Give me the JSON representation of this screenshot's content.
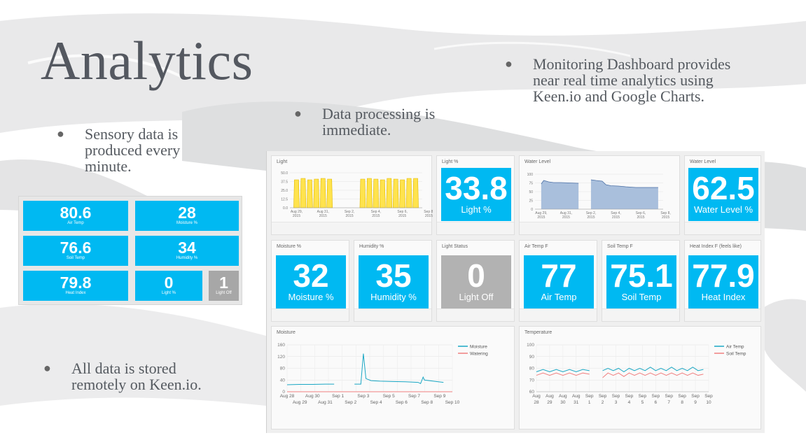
{
  "slide": {
    "title": "Analytics",
    "bullets": {
      "sensory": "Sensory data is\nproduced every\nminute.",
      "processing": "Data processing is\nimmediate.",
      "monitoring": "Monitoring Dashboard provides\nnear real time analytics using\nKeen.io and Google Charts.",
      "storage": "All data is stored\nremotely on Keen.io."
    },
    "bullet_glyph": "●"
  },
  "mini_panel": {
    "tiles": [
      {
        "value": "80.6",
        "label": "Air Temp"
      },
      {
        "value": "28",
        "label": "Moisture %"
      },
      {
        "value": "76.6",
        "label": "Soil Temp"
      },
      {
        "value": "34",
        "label": "Humidity %"
      },
      {
        "value": "79.8",
        "label": "Heat Index"
      },
      {
        "value": "0",
        "label": "Light %"
      },
      {
        "value": "1",
        "label": "Light Off"
      }
    ]
  },
  "dashboard": {
    "cards": {
      "light_chart": "Light",
      "light_pct": "Light %",
      "water_chart": "Water Level",
      "water_tile": "Water Level",
      "moisture_pct": "Moisture %",
      "humidity_pct": "Humidity %",
      "light_status": "Light Status",
      "air_temp": "Air Temp F",
      "soil_temp": "Soil Temp F",
      "heat_index": "Heat Index F (feels like)",
      "moisture_chart": "Moisture",
      "temperature_chart": "Temperature"
    },
    "tiles": {
      "light_pct": {
        "value": "33.8",
        "label": "Light %"
      },
      "water_level": {
        "value": "62.5",
        "label": "Water Level %"
      },
      "moisture": {
        "value": "32",
        "label": "Moisture %"
      },
      "humidity": {
        "value": "35",
        "label": "Humidity %"
      },
      "light_status": {
        "value": "0",
        "label": "Light Off"
      },
      "air_temp": {
        "value": "77",
        "label": "Air Temp"
      },
      "soil_temp": {
        "value": "75.1",
        "label": "Soil Temp"
      },
      "heat_index": {
        "value": "77.9",
        "label": "Heat Index"
      }
    }
  },
  "colors": {
    "tile_blue": "#00b9f2",
    "tile_gray": "#b2b2b2",
    "light_fill": "#ffe34d",
    "light_line": "#e0b800",
    "water_fill": "#a9bfdc",
    "water_line": "#4a6fa5",
    "series_cyan": "#1aa7c4",
    "series_red": "#f08080"
  },
  "chart_data": [
    {
      "type": "area",
      "title": "Light",
      "x": [
        "Aug 29, 2015",
        "Aug 31, 2015",
        "Sep 2, 2015",
        "Sep 4, 2015",
        "Sep 6, 2015",
        "Sep 8, 2015"
      ],
      "yticks": [
        "50.0",
        "37.5",
        "25.0",
        "12.5",
        "0.0"
      ],
      "ylim": [
        0,
        50
      ],
      "x_domain": [
        28.5,
        38.5
      ],
      "x_ticks_pos": [
        29,
        31,
        33,
        35,
        37,
        39
      ],
      "daily_peaks": [
        [
          29,
          40
        ],
        [
          29.5,
          42
        ],
        [
          30,
          40
        ],
        [
          30.5,
          41
        ],
        [
          31,
          42
        ],
        [
          31.5,
          41
        ],
        [
          34,
          41
        ],
        [
          34.5,
          42
        ],
        [
          35,
          41
        ],
        [
          35.5,
          40
        ],
        [
          36,
          42
        ],
        [
          36.5,
          41
        ],
        [
          37,
          40
        ],
        [
          37.5,
          42
        ],
        [
          38,
          42
        ]
      ]
    },
    {
      "type": "area",
      "title": "Water Level",
      "x": [
        "Aug 29, 2015",
        "Aug 31, 2015",
        "Sep 2, 2015",
        "Sep 4, 2015",
        "Sep 6, 2015",
        "Sep 8, 2015"
      ],
      "yticks": [
        "100",
        "75",
        "50",
        "25",
        "0"
      ],
      "ylim": [
        0,
        100
      ],
      "x_domain": [
        28.5,
        38.8
      ],
      "x_ticks_pos": [
        29,
        31,
        33,
        35,
        37,
        39
      ],
      "segments": [
        [
          [
            29.0,
            72
          ],
          [
            29.2,
            82
          ],
          [
            29.6,
            78
          ],
          [
            30.0,
            76
          ],
          [
            30.6,
            76
          ],
          [
            31.3,
            75
          ],
          [
            32.0,
            74
          ]
        ],
        [
          [
            33.0,
            84
          ],
          [
            33.4,
            82
          ],
          [
            33.9,
            80
          ],
          [
            34.2,
            70
          ],
          [
            34.6,
            67
          ],
          [
            35.2,
            66
          ],
          [
            35.8,
            64
          ],
          [
            36.6,
            62
          ],
          [
            37.4,
            62
          ],
          [
            38.4,
            62
          ]
        ]
      ]
    },
    {
      "type": "line",
      "title": "Moisture",
      "x_major": [
        "Aug 28",
        "Aug 30",
        "Sep 1",
        "Sep 3",
        "Sep 5",
        "Sep 7",
        "Sep 9"
      ],
      "x_minor": [
        "Aug 29",
        "Aug 31",
        "Sep 2",
        "Sep 4",
        "Sep 6",
        "Sep 8",
        "Sep 10"
      ],
      "yticks": [
        "160",
        "120",
        "80",
        "40",
        "0"
      ],
      "ylim": [
        0,
        160
      ],
      "x_domain": [
        28,
        41
      ],
      "series": [
        {
          "name": "Moisture",
          "segments": [
            [
              [
                28,
                24
              ],
              [
                29,
                25
              ],
              [
                30,
                25
              ],
              [
                31,
                26
              ],
              [
                31.7,
                26
              ]
            ],
            [
              [
                33.3,
                26
              ],
              [
                33.8,
                26
              ],
              [
                34.0,
                130
              ],
              [
                34.2,
                45
              ],
              [
                34.6,
                38
              ],
              [
                35.3,
                36
              ],
              [
                36.3,
                35
              ],
              [
                37.3,
                34
              ],
              [
                38.3,
                32
              ],
              [
                38.5,
                28
              ],
              [
                38.7,
                50
              ],
              [
                38.8,
                40
              ],
              [
                39.5,
                36
              ],
              [
                40.3,
                32
              ]
            ]
          ]
        },
        {
          "name": "Watering",
          "segments": [
            [
              [
                28,
                0
              ],
              [
                41,
                0
              ]
            ]
          ]
        }
      ]
    },
    {
      "type": "line",
      "title": "Temperature",
      "x_major": [
        "Aug 28",
        "Aug 29",
        "Aug 30",
        "Aug 31",
        "Sep 1",
        "Sep 2",
        "Sep 3",
        "Sep 4",
        "Sep 5",
        "Sep 6",
        "Sep 7",
        "Sep 8",
        "Sep 9",
        "Sep 10"
      ],
      "yticks": [
        "100",
        "90",
        "80",
        "70",
        "60"
      ],
      "ylim": [
        60,
        100
      ],
      "x_domain": [
        28,
        41
      ],
      "series": [
        {
          "name": "Air Temp",
          "segments": [
            [
              [
                28,
                77
              ],
              [
                28.5,
                79
              ],
              [
                29,
                77
              ],
              [
                29.5,
                79
              ],
              [
                30,
                77
              ],
              [
                30.5,
                79
              ],
              [
                31,
                77
              ],
              [
                31.5,
                79
              ],
              [
                32,
                78
              ]
            ],
            [
              [
                33,
                78
              ],
              [
                33.4,
                80
              ],
              [
                33.8,
                78
              ],
              [
                34.2,
                80
              ],
              [
                34.6,
                77
              ],
              [
                35,
                80
              ],
              [
                35.4,
                78
              ],
              [
                35.8,
                80
              ],
              [
                36.2,
                78
              ],
              [
                36.6,
                81
              ],
              [
                37,
                78
              ],
              [
                37.4,
                80
              ],
              [
                37.8,
                78
              ],
              [
                38.2,
                81
              ],
              [
                38.6,
                78
              ],
              [
                39,
                80
              ],
              [
                39.4,
                78
              ],
              [
                39.8,
                81
              ],
              [
                40.2,
                78
              ],
              [
                40.6,
                79
              ]
            ]
          ]
        },
        {
          "name": "Soil Temp",
          "segments": [
            [
              [
                28,
                74
              ],
              [
                28.5,
                76
              ],
              [
                29,
                74
              ],
              [
                29.5,
                76
              ],
              [
                30,
                74
              ],
              [
                30.5,
                76
              ],
              [
                31,
                74
              ],
              [
                31.5,
                76
              ],
              [
                32,
                75
              ]
            ],
            [
              [
                33,
                72
              ],
              [
                33.4,
                76
              ],
              [
                33.8,
                74
              ],
              [
                34.2,
                76
              ],
              [
                34.6,
                73
              ],
              [
                35,
                76
              ],
              [
                35.4,
                74
              ],
              [
                35.8,
                76
              ],
              [
                36.2,
                74
              ],
              [
                36.6,
                76
              ],
              [
                37,
                74
              ],
              [
                37.4,
                76
              ],
              [
                37.8,
                74
              ],
              [
                38.2,
                76
              ],
              [
                38.6,
                74
              ],
              [
                39,
                76
              ],
              [
                39.4,
                74
              ],
              [
                39.8,
                76
              ],
              [
                40.2,
                74
              ],
              [
                40.6,
                75
              ]
            ]
          ]
        }
      ]
    }
  ]
}
